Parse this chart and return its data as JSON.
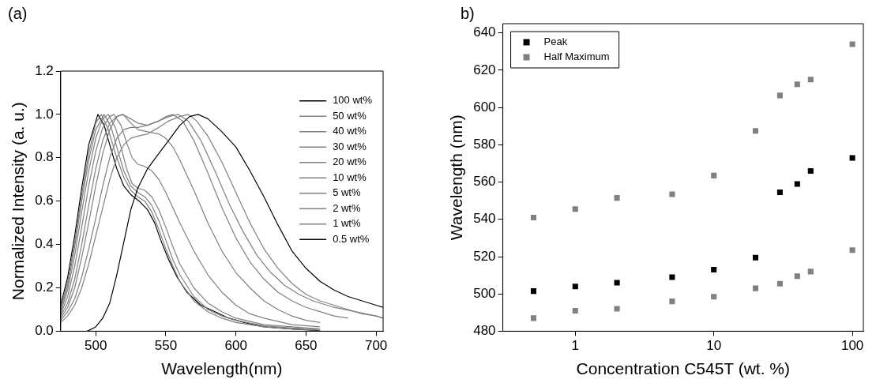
{
  "chart_data": [
    {
      "type": "line",
      "title": "(a)",
      "xlabel": "Wavelength(nm)",
      "ylabel": "Normalized Intensity (a. u.)",
      "xlim": [
        475,
        705
      ],
      "xticks": [
        500,
        550,
        600,
        650,
        700
      ],
      "ylim": [
        0,
        1.2
      ],
      "yticks": [
        {
          "value": 0,
          "label": "0.0"
        },
        0.2,
        0.4,
        0.6,
        0.8,
        {
          "value": 1,
          "label": "1.0"
        },
        1.2
      ],
      "grid": false,
      "legend": "top right",
      "marker": "none",
      "series": [
        {
          "name": "100 wt%",
          "color": "#000000",
          "x": [
            494,
            500,
            505,
            510,
            515,
            520,
            525,
            530,
            537,
            545,
            552,
            560,
            567,
            573,
            580,
            590,
            600,
            610,
            620,
            630,
            640,
            650,
            660,
            670,
            680,
            690,
            700,
            705
          ],
          "values": [
            0,
            0.02,
            0.06,
            0.13,
            0.26,
            0.41,
            0.56,
            0.66,
            0.75,
            0.82,
            0.88,
            0.95,
            0.99,
            1.0,
            0.98,
            0.92,
            0.85,
            0.74,
            0.62,
            0.49,
            0.37,
            0.29,
            0.23,
            0.19,
            0.16,
            0.14,
            0.12,
            0.11
          ]
        },
        {
          "name": "50 wt%",
          "color": "#808080",
          "x": [
            475,
            480,
            485,
            490,
            495,
            500,
            505,
            510,
            515,
            520,
            525,
            530,
            537,
            545,
            552,
            560,
            566,
            572,
            580,
            590,
            600,
            610,
            620,
            630,
            640,
            650,
            660,
            670,
            680,
            690,
            700,
            705
          ],
          "values": [
            0.04,
            0.07,
            0.12,
            0.2,
            0.31,
            0.44,
            0.57,
            0.7,
            0.8,
            0.86,
            0.89,
            0.9,
            0.91,
            0.94,
            0.97,
            0.99,
            1.0,
            0.97,
            0.9,
            0.78,
            0.64,
            0.5,
            0.38,
            0.29,
            0.22,
            0.17,
            0.14,
            0.12,
            0.1,
            0.08,
            0.07,
            0.06
          ]
        },
        {
          "name": "40 wt%",
          "color": "#808080",
          "x": [
            475,
            480,
            485,
            490,
            495,
            500,
            505,
            510,
            515,
            520,
            525,
            530,
            537,
            545,
            552,
            559,
            566,
            575,
            585,
            595,
            605,
            615,
            625,
            635,
            645,
            655,
            670,
            685,
            700,
            705
          ],
          "values": [
            0.05,
            0.09,
            0.15,
            0.25,
            0.38,
            0.52,
            0.67,
            0.8,
            0.89,
            0.93,
            0.94,
            0.94,
            0.95,
            0.97,
            0.99,
            1.0,
            0.97,
            0.88,
            0.74,
            0.59,
            0.46,
            0.35,
            0.27,
            0.21,
            0.17,
            0.14,
            0.11,
            0.09,
            0.07,
            0.06
          ]
        },
        {
          "name": "30 wt%",
          "color": "#808080",
          "x": [
            475,
            480,
            485,
            490,
            495,
            500,
            505,
            510,
            515,
            519,
            525,
            530,
            537,
            545,
            550,
            555,
            562,
            570,
            580,
            590,
            600,
            610,
            620,
            630,
            640,
            650,
            660,
            670,
            680
          ],
          "values": [
            0.06,
            0.11,
            0.2,
            0.34,
            0.5,
            0.67,
            0.82,
            0.93,
            0.99,
            1.0,
            0.98,
            0.96,
            0.95,
            0.97,
            0.99,
            1.0,
            0.97,
            0.88,
            0.73,
            0.57,
            0.43,
            0.32,
            0.24,
            0.18,
            0.14,
            0.11,
            0.09,
            0.07,
            0.06
          ]
        },
        {
          "name": "20 wt%",
          "color": "#808080",
          "x": [
            475,
            480,
            485,
            490,
            495,
            500,
            505,
            510,
            515,
            519.5,
            525,
            530,
            537,
            545,
            550,
            555,
            560,
            570,
            580,
            590,
            600,
            610,
            620,
            630,
            640,
            650,
            660
          ],
          "values": [
            0.07,
            0.13,
            0.24,
            0.4,
            0.58,
            0.75,
            0.88,
            0.96,
            0.99,
            1.0,
            0.96,
            0.93,
            0.92,
            0.91,
            0.89,
            0.85,
            0.79,
            0.65,
            0.5,
            0.37,
            0.27,
            0.2,
            0.14,
            0.1,
            0.07,
            0.05,
            0.04
          ]
        },
        {
          "name": "10 wt%",
          "color": "#808080",
          "x": [
            475,
            480,
            485,
            490,
            495,
            500,
            505,
            510,
            513,
            518,
            522,
            526,
            530,
            535,
            540,
            545,
            550,
            560,
            570,
            580,
            590,
            600,
            610,
            620,
            640,
            660
          ],
          "values": [
            0.08,
            0.16,
            0.3,
            0.48,
            0.67,
            0.83,
            0.94,
            0.99,
            1.0,
            0.95,
            0.87,
            0.8,
            0.77,
            0.76,
            0.74,
            0.7,
            0.64,
            0.5,
            0.37,
            0.26,
            0.18,
            0.12,
            0.08,
            0.06,
            0.03,
            0.02
          ]
        },
        {
          "name": "5 wt%",
          "color": "#808080",
          "x": [
            475,
            480,
            485,
            490,
            495,
            500,
            505,
            509,
            514,
            518,
            522,
            526,
            530,
            535,
            540,
            545,
            550,
            555,
            560,
            570,
            580,
            590,
            600,
            620,
            640,
            660
          ],
          "values": [
            0.09,
            0.19,
            0.35,
            0.55,
            0.74,
            0.89,
            0.98,
            1.0,
            0.94,
            0.85,
            0.75,
            0.68,
            0.66,
            0.65,
            0.62,
            0.56,
            0.48,
            0.39,
            0.31,
            0.2,
            0.13,
            0.09,
            0.06,
            0.03,
            0.02,
            0.01
          ]
        },
        {
          "name": "2 wt%",
          "color": "#808080",
          "x": [
            475,
            480,
            485,
            490,
            495,
            500,
            506,
            511,
            515,
            520,
            525,
            530,
            535,
            540,
            545,
            550,
            555,
            560,
            570,
            580,
            590,
            600,
            620,
            640,
            660
          ],
          "values": [
            0.1,
            0.21,
            0.39,
            0.6,
            0.79,
            0.93,
            1.0,
            0.94,
            0.85,
            0.74,
            0.67,
            0.64,
            0.62,
            0.58,
            0.51,
            0.42,
            0.33,
            0.26,
            0.16,
            0.1,
            0.07,
            0.05,
            0.025,
            0.015,
            0.01
          ]
        },
        {
          "name": "1 wt%",
          "color": "#808080",
          "x": [
            475,
            480,
            485,
            490,
            495,
            500,
            504,
            509,
            514,
            520,
            525,
            530,
            535,
            540,
            545,
            550,
            555,
            560,
            570,
            580,
            590,
            600,
            620,
            640,
            660
          ],
          "values": [
            0.11,
            0.23,
            0.41,
            0.63,
            0.82,
            0.96,
            1.0,
            0.93,
            0.82,
            0.71,
            0.65,
            0.62,
            0.6,
            0.55,
            0.47,
            0.38,
            0.3,
            0.23,
            0.14,
            0.09,
            0.06,
            0.04,
            0.02,
            0.01,
            0.005
          ]
        },
        {
          "name": "0.5 wt%",
          "color": "#000000",
          "x": [
            475,
            480,
            485,
            490,
            495,
            501.5,
            506,
            510,
            515,
            520,
            525,
            531,
            537,
            542,
            547,
            552,
            558,
            565,
            575,
            585,
            595,
            606,
            620,
            640,
            660
          ],
          "values": [
            0.12,
            0.25,
            0.44,
            0.66,
            0.86,
            1.0,
            0.95,
            0.86,
            0.75,
            0.67,
            0.63,
            0.6,
            0.56,
            0.5,
            0.41,
            0.33,
            0.25,
            0.18,
            0.12,
            0.09,
            0.06,
            0.04,
            0.02,
            0.01,
            0.003
          ]
        }
      ]
    },
    {
      "type": "scatter",
      "title": "b)",
      "xlabel": "Concentration C545T (wt. %)",
      "ylabel": "Wavelength (nm)",
      "log": "x",
      "xlim": [
        0.3,
        120
      ],
      "xticks": [
        1,
        10,
        100
      ],
      "ylim": [
        480,
        645
      ],
      "yticks": [
        480,
        500,
        520,
        540,
        560,
        580,
        600,
        620,
        640
      ],
      "grid": false,
      "legend": "top left",
      "marker": "square",
      "series": [
        {
          "name": "Peak",
          "color": "#000000",
          "x": [
            0.5,
            1,
            2,
            5,
            10,
            20,
            30,
            40,
            50,
            100
          ],
          "values": [
            501.5,
            504,
            506,
            509,
            513,
            519.5,
            554.5,
            559,
            566,
            573
          ]
        },
        {
          "name": "Half Maximum",
          "color": "#808080",
          "x": [
            0.5,
            1,
            2,
            5,
            10,
            20,
            30,
            40,
            50,
            100,
            0.5,
            1,
            2,
            5,
            10,
            20,
            30,
            40,
            50,
            100
          ],
          "values": [
            541,
            545.5,
            551.5,
            553.5,
            563.5,
            587.5,
            606.5,
            612.5,
            615,
            634,
            487,
            491,
            492,
            496,
            498.5,
            503,
            505.5,
            509.5,
            512,
            523.5
          ]
        }
      ]
    }
  ]
}
